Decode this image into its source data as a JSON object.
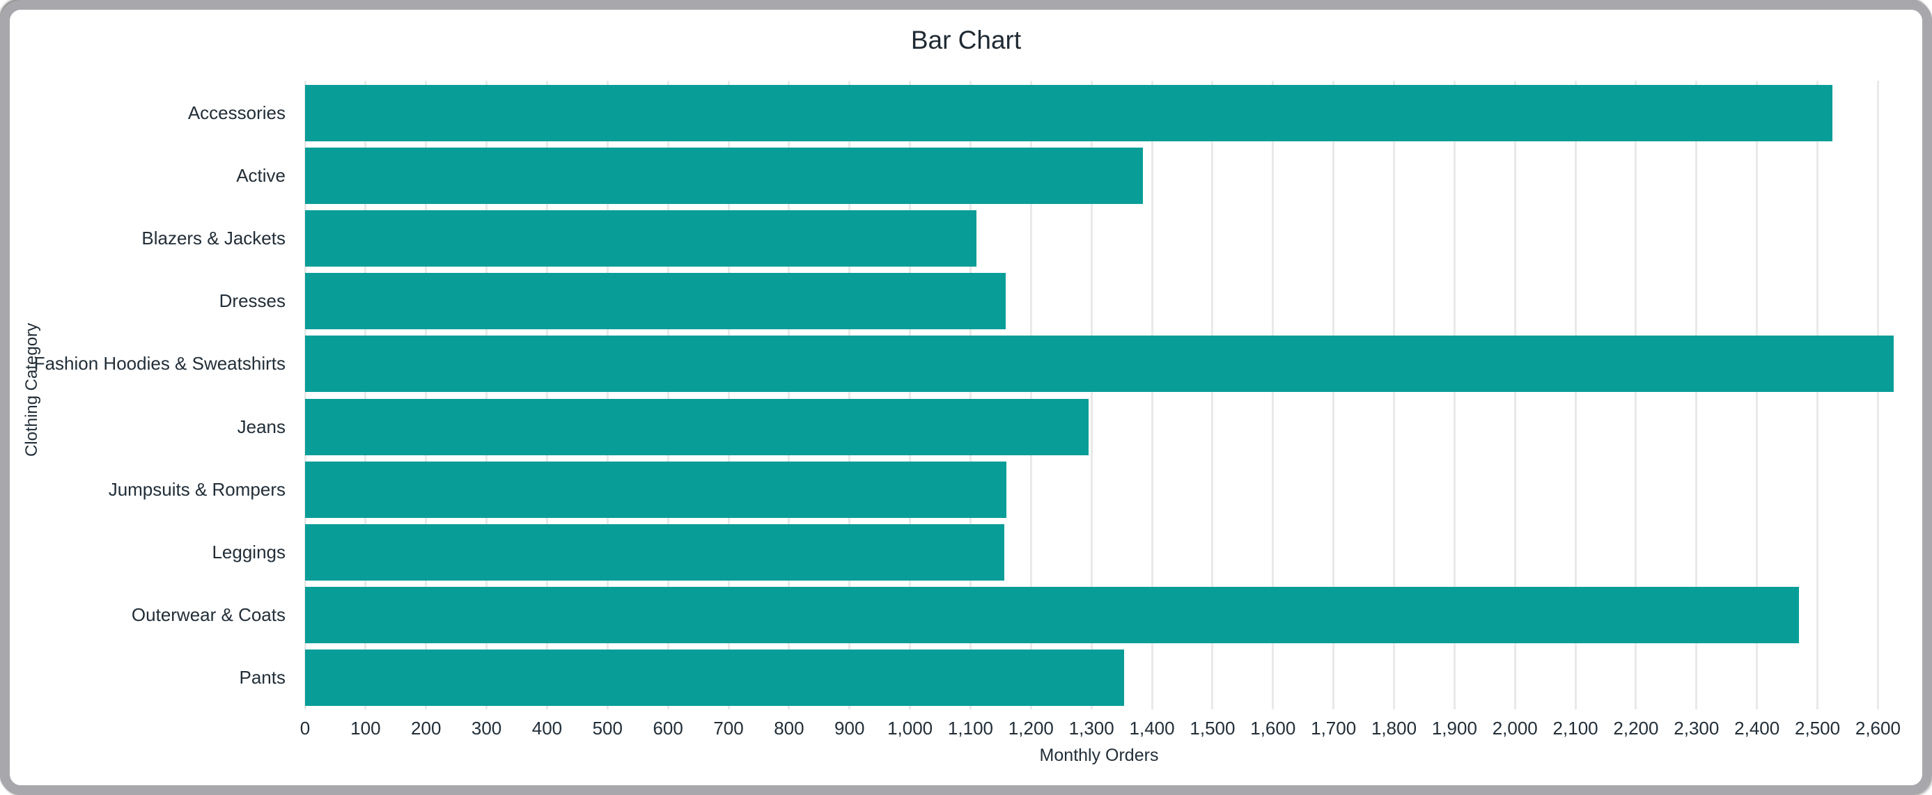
{
  "window": {
    "frame_color": "#a8a8ac",
    "background_color": "#ffffff"
  },
  "chart_data": {
    "type": "bar",
    "orientation": "horizontal",
    "title": "Bar Chart",
    "xlabel": "Monthly Orders",
    "ylabel": "Clothing Category",
    "categories": [
      "Accessories",
      "Active",
      "Blazers & Jackets",
      "Dresses",
      "Fashion Hoodies & Sweatshirts",
      "Jeans",
      "Jumpsuits & Rompers",
      "Leggings",
      "Outerwear & Coats",
      "Pants"
    ],
    "values": [
      2525,
      1385,
      1110,
      1158,
      2626,
      1295,
      1159,
      1156,
      2470,
      1354
    ],
    "xlim": [
      0,
      2626
    ],
    "xtick_interval": 100,
    "xtick_format": "thousands-comma",
    "grid": true,
    "legend": "none",
    "bar_color": "#099d98",
    "gridline_color": "#e9e9e9",
    "text_color": "#222e38",
    "title_color": "#1f2a33"
  }
}
